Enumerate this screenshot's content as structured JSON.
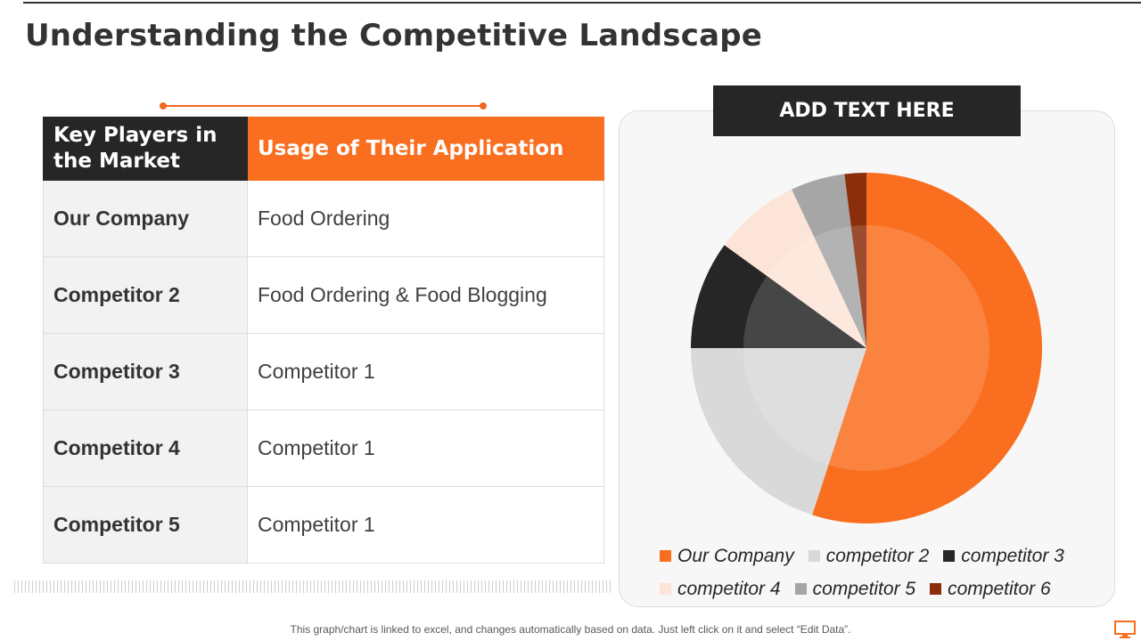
{
  "page": {
    "title": "Understanding the Competitive Landscape",
    "footnote": "This graph/chart is linked to excel, and changes automatically based on data. Just left click on it and select “Edit Data”.",
    "corner_icon": "monitor-icon",
    "accent_color": "#F96E1F",
    "dark_color": "#262626"
  },
  "table": {
    "headers": [
      "Key Players in the Market",
      "Usage of Their Application"
    ],
    "rows": [
      {
        "player": "Our Company",
        "usage": "Food Ordering"
      },
      {
        "player": "Competitor 2",
        "usage": "Food Ordering & Food Blogging"
      },
      {
        "player": "Competitor 3",
        "usage": "Competitor 1"
      },
      {
        "player": "Competitor 4",
        "usage": "Competitor 1"
      },
      {
        "player": "Competitor 5",
        "usage": "Competitor 1"
      }
    ]
  },
  "chart_header": "ADD TEXT HERE",
  "chart_data": {
    "type": "pie",
    "title": "",
    "categories": [
      "Our Company",
      "competitor 2",
      "competitor 3",
      "competitor 4",
      "competitor 5",
      "competitor 6"
    ],
    "values": [
      55,
      20,
      10,
      8,
      5,
      2
    ],
    "colors": [
      "#F96E1F",
      "#D9D9D9",
      "#262626",
      "#FDE4D8",
      "#A6A6A6",
      "#8B2E0B"
    ],
    "legend_position": "bottom"
  }
}
